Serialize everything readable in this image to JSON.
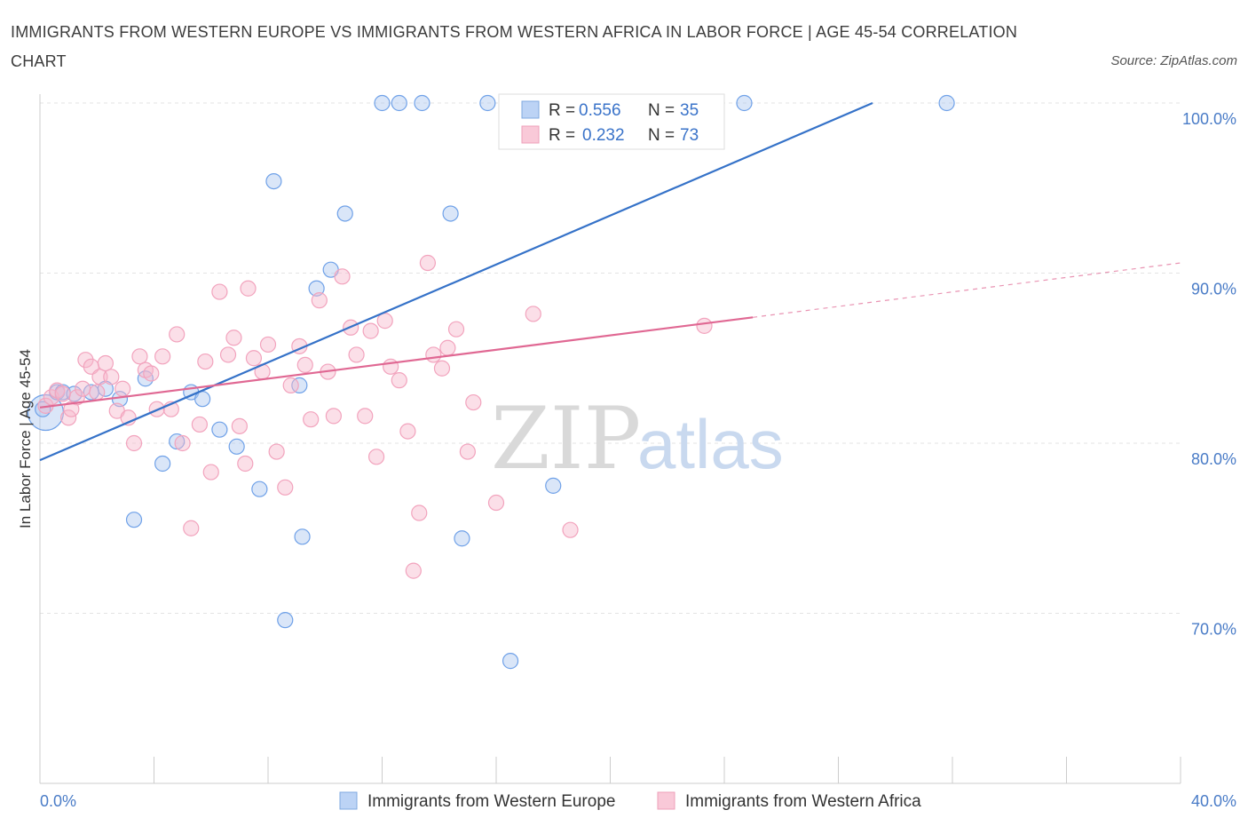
{
  "header": {
    "title": "IMMIGRANTS FROM WESTERN EUROPE VS IMMIGRANTS FROM WESTERN AFRICA IN LABOR FORCE | AGE 45-54 CORRELATION CHART",
    "source": "Source: ZipAtlas.com"
  },
  "watermark": {
    "zip": "ZIP",
    "atlas": "atlas"
  },
  "chart_data": {
    "type": "scatter",
    "title": "IMMIGRANTS FROM WESTERN EUROPE VS IMMIGRANTS FROM WESTERN AFRICA IN LABOR FORCE | AGE 45-54 CORRELATION CHART",
    "ylabel": "In Labor Force | Age 45-54",
    "xlim": [
      0,
      40
    ],
    "ylim": [
      60,
      100
    ],
    "x_tick_labels": [
      "0.0%",
      "40.0%"
    ],
    "y_ticks": [
      {
        "value": 100,
        "label": "100.0%"
      },
      {
        "value": 90,
        "label": "90.0%"
      },
      {
        "value": 80,
        "label": "80.0%"
      },
      {
        "value": 70,
        "label": "70.0%"
      }
    ],
    "grid": true,
    "legend_position": "top-center",
    "series": [
      {
        "name": "Immigrants from Western Europe",
        "color": "#6fa1e8",
        "line_color": "#3572c8",
        "R": "0.556",
        "N": "35",
        "trend": {
          "x0": 0,
          "y0": 79.0,
          "x1": 29.2,
          "y1": 100.0
        },
        "points": [
          [
            0.2,
            81.8
          ],
          [
            0.6,
            83.0
          ],
          [
            0.8,
            83.0
          ],
          [
            1.2,
            82.9
          ],
          [
            1.8,
            83.0
          ],
          [
            2.3,
            83.2
          ],
          [
            2.8,
            82.6
          ],
          [
            3.3,
            75.5
          ],
          [
            3.7,
            83.8
          ],
          [
            4.3,
            78.8
          ],
          [
            4.8,
            80.1
          ],
          [
            5.3,
            83.0
          ],
          [
            5.7,
            82.6
          ],
          [
            6.3,
            80.8
          ],
          [
            6.9,
            79.8
          ],
          [
            7.7,
            77.3
          ],
          [
            8.2,
            95.4
          ],
          [
            8.6,
            69.6
          ],
          [
            9.1,
            83.4
          ],
          [
            9.2,
            74.5
          ],
          [
            9.7,
            89.1
          ],
          [
            10.2,
            90.2
          ],
          [
            10.7,
            93.5
          ],
          [
            12.0,
            100.0
          ],
          [
            12.6,
            100.0
          ],
          [
            13.4,
            100.0
          ],
          [
            14.4,
            93.5
          ],
          [
            14.8,
            74.4
          ],
          [
            15.7,
            100.0
          ],
          [
            16.5,
            67.2
          ],
          [
            18.0,
            77.5
          ],
          [
            21.8,
            100.0
          ],
          [
            24.7,
            100.0
          ],
          [
            31.8,
            100.0
          ],
          [
            0.1,
            82.0
          ]
        ]
      },
      {
        "name": "Immigrants from Western Africa",
        "color": "#f2a3bd",
        "line_color": "#e06893",
        "R": "0.232",
        "N": "73",
        "trend": {
          "x0": 0,
          "y0": 82.1,
          "x1": 25.0,
          "y1": 87.4
        },
        "trend_extension": {
          "x0": 25.0,
          "y0": 87.4,
          "x1": 40.0,
          "y1": 90.6
        },
        "points": [
          [
            0.2,
            82.2
          ],
          [
            0.4,
            82.7
          ],
          [
            0.6,
            83.1
          ],
          [
            1.0,
            81.5
          ],
          [
            1.3,
            82.7
          ],
          [
            1.6,
            84.9
          ],
          [
            1.8,
            84.5
          ],
          [
            2.1,
            83.9
          ],
          [
            2.3,
            84.7
          ],
          [
            2.5,
            83.9
          ],
          [
            2.7,
            81.9
          ],
          [
            2.9,
            83.2
          ],
          [
            3.1,
            81.5
          ],
          [
            3.3,
            80.0
          ],
          [
            3.5,
            85.1
          ],
          [
            3.7,
            84.3
          ],
          [
            3.9,
            84.1
          ],
          [
            4.1,
            82.0
          ],
          [
            4.3,
            85.1
          ],
          [
            4.6,
            82.0
          ],
          [
            4.8,
            86.4
          ],
          [
            5.0,
            80.0
          ],
          [
            5.3,
            75.0
          ],
          [
            5.6,
            81.1
          ],
          [
            5.8,
            84.8
          ],
          [
            6.0,
            78.3
          ],
          [
            6.3,
            88.9
          ],
          [
            6.6,
            85.2
          ],
          [
            6.8,
            86.2
          ],
          [
            7.0,
            81.0
          ],
          [
            7.3,
            89.1
          ],
          [
            7.5,
            85.0
          ],
          [
            7.8,
            84.2
          ],
          [
            8.0,
            85.8
          ],
          [
            8.3,
            79.5
          ],
          [
            8.6,
            77.4
          ],
          [
            8.8,
            83.4
          ],
          [
            9.1,
            85.7
          ],
          [
            9.3,
            84.6
          ],
          [
            9.5,
            81.4
          ],
          [
            9.8,
            88.4
          ],
          [
            10.1,
            84.2
          ],
          [
            10.3,
            81.6
          ],
          [
            10.6,
            89.8
          ],
          [
            10.9,
            86.8
          ],
          [
            11.1,
            85.2
          ],
          [
            11.4,
            81.6
          ],
          [
            11.6,
            86.6
          ],
          [
            11.8,
            79.2
          ],
          [
            12.1,
            87.2
          ],
          [
            12.3,
            84.5
          ],
          [
            12.6,
            83.7
          ],
          [
            12.9,
            80.7
          ],
          [
            13.1,
            72.5
          ],
          [
            13.3,
            75.9
          ],
          [
            13.6,
            90.6
          ],
          [
            13.8,
            85.2
          ],
          [
            14.1,
            84.4
          ],
          [
            14.3,
            85.6
          ],
          [
            14.6,
            86.7
          ],
          [
            15.0,
            79.5
          ],
          [
            15.2,
            82.4
          ],
          [
            16.0,
            76.5
          ],
          [
            17.3,
            87.6
          ],
          [
            18.6,
            74.9
          ],
          [
            1.1,
            82.0
          ],
          [
            2.0,
            83.0
          ],
          [
            7.2,
            78.8
          ],
          [
            19.5,
            100.0
          ],
          [
            17.8,
            100.0
          ],
          [
            23.3,
            86.9
          ],
          [
            0.8,
            82.9
          ],
          [
            1.5,
            83.2
          ]
        ]
      }
    ]
  },
  "legend": {
    "r_label": "R =",
    "n_label": "N ="
  }
}
